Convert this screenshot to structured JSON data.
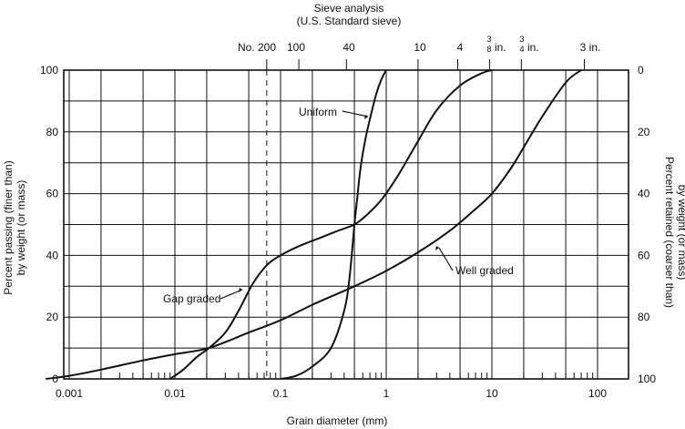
{
  "chart_data": {
    "type": "line",
    "title": "Sieve analysis",
    "subtitle": "(U.S. Standard sieve)",
    "xlabel": "Grain diameter (mm)",
    "ylabel_left_line1": "Percent passing (finer than)",
    "ylabel_left_line2": "by weight (or mass)",
    "ylabel_right_line1": "Percent retained (coarser than)",
    "ylabel_right_line2": "by weight (or mass)",
    "x_scale": "log",
    "xlim": [
      0.0006,
      200
    ],
    "ylim": [
      0,
      100
    ],
    "grid": true,
    "x_ticks": [
      {
        "value": 0.001,
        "label": "0.001"
      },
      {
        "value": 0.01,
        "label": "0.01"
      },
      {
        "value": 0.1,
        "label": "0.1"
      },
      {
        "value": 1,
        "label": "1"
      },
      {
        "value": 10,
        "label": "10"
      },
      {
        "value": 100,
        "label": "100"
      }
    ],
    "y_ticks_left": [
      {
        "value": 0,
        "label": "0"
      },
      {
        "value": 20,
        "label": "20"
      },
      {
        "value": 40,
        "label": "40"
      },
      {
        "value": 60,
        "label": "60"
      },
      {
        "value": 80,
        "label": "80"
      },
      {
        "value": 100,
        "label": "100"
      }
    ],
    "y_ticks_right": [
      {
        "value": 0,
        "label": "100"
      },
      {
        "value": 20,
        "label": "80"
      },
      {
        "value": 40,
        "label": "60"
      },
      {
        "value": 60,
        "label": "40"
      },
      {
        "value": 80,
        "label": "20"
      },
      {
        "value": 100,
        "label": "0"
      }
    ],
    "sieves": [
      {
        "name": "No. 200",
        "size": 0.074,
        "dashed": true
      },
      {
        "name": "100",
        "size": 0.149
      },
      {
        "name": "40",
        "size": 0.42
      },
      {
        "name": "10",
        "size": 2.0
      },
      {
        "name": "4",
        "size": 4.75
      },
      {
        "name": "3/8 in.",
        "size": 9.5
      },
      {
        "name": "3/4 in.",
        "size": 19.0
      },
      {
        "name": "3 in.",
        "size": 75.0
      }
    ],
    "series": [
      {
        "name": "Uniform",
        "x": [
          0.1,
          0.14,
          0.2,
          0.3,
          0.4,
          0.45,
          0.5,
          0.53,
          0.57,
          0.63,
          0.7,
          0.8,
          0.9,
          1.0
        ],
        "y": [
          0,
          1,
          4,
          10,
          22,
          33,
          50,
          58,
          68,
          77,
          84,
          92,
          97,
          100
        ]
      },
      {
        "name": "Gap graded",
        "x": [
          0.009,
          0.012,
          0.016,
          0.021,
          0.03,
          0.04,
          0.055,
          0.075,
          0.1,
          0.15,
          0.25,
          0.35,
          0.5,
          0.65,
          0.9,
          1.3,
          2.0,
          3.0,
          5.0,
          8.0,
          10.0
        ],
        "y": [
          0,
          3,
          7,
          10,
          15,
          22,
          31,
          37,
          40,
          43,
          46,
          48,
          50,
          53,
          58,
          66,
          77,
          87,
          95,
          99,
          100
        ]
      },
      {
        "name": "Well graded",
        "x": [
          0.0006,
          0.001,
          0.002,
          0.005,
          0.01,
          0.021,
          0.05,
          0.1,
          0.2,
          0.5,
          1.0,
          2.0,
          4.0,
          7.0,
          10.0,
          15.0,
          20.0,
          30.0,
          50.0,
          70.0
        ],
        "y": [
          0,
          1,
          3,
          6,
          8,
          10,
          15,
          19,
          24,
          30,
          35,
          41,
          48,
          55,
          60,
          68,
          75,
          85,
          96,
          100
        ]
      }
    ],
    "annotations": [
      {
        "text": "Uniform",
        "series": "Uniform"
      },
      {
        "text": "Gap graded",
        "series": "Gap graded"
      },
      {
        "text": "Well graded",
        "series": "Well graded"
      }
    ]
  }
}
